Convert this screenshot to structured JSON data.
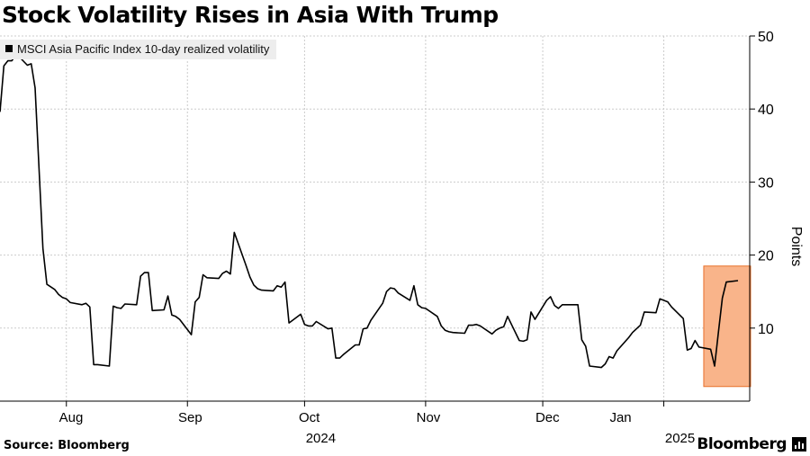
{
  "header": {
    "title": "Stock Volatility Rises in Asia With Trump"
  },
  "footer": {
    "source": "Source: Bloomberg",
    "brand": "Bloomberg"
  },
  "colors": {
    "line": "#000000",
    "grid": "#cccccc",
    "highlight_fill": "#f9b48a",
    "highlight_stroke": "#e8702a",
    "legend_bg": "#ededed"
  },
  "chart_data": {
    "type": "line",
    "title": "Stock Volatility Rises in Asia With Trump",
    "ylabel": "Points",
    "ylim": [
      0,
      50
    ],
    "y_ticks": [
      10,
      20,
      30,
      40,
      50
    ],
    "y_axis_position": "right",
    "x_range": [
      "2024-07-15",
      "2025-01-23"
    ],
    "x_month_ticks": [
      {
        "date": "2024-08-01",
        "label": "Aug"
      },
      {
        "date": "2024-09-01",
        "label": "Sep"
      },
      {
        "date": "2024-10-01",
        "label": "Oct"
      },
      {
        "date": "2024-11-01",
        "label": "Nov"
      },
      {
        "date": "2024-12-01",
        "label": "Dec"
      },
      {
        "date": "2025-01-01",
        "label": "Jan"
      }
    ],
    "x_year_labels": [
      {
        "date": "2024-10-01",
        "label": "2024"
      },
      {
        "date": "2025-01-01",
        "label": "2025"
      }
    ],
    "grid": true,
    "legend_position": "top-left",
    "series": [
      {
        "name": "MSCI Asia Pacific Index 10-day realized volatility",
        "points": [
          [
            "2024-07-15",
            39.6
          ],
          [
            "2024-07-16",
            45.9
          ],
          [
            "2024-07-17",
            46.6
          ],
          [
            "2024-07-18",
            46.6
          ],
          [
            "2024-07-19",
            47.3
          ],
          [
            "2024-07-20",
            47.1
          ],
          [
            "2024-07-22",
            46.0
          ],
          [
            "2024-07-23",
            46.2
          ],
          [
            "2024-07-24",
            42.9
          ],
          [
            "2024-07-26",
            20.9
          ],
          [
            "2024-07-27",
            16.0
          ],
          [
            "2024-07-29",
            15.3
          ],
          [
            "2024-07-30",
            14.6
          ],
          [
            "2024-07-31",
            14.2
          ],
          [
            "2024-08-01",
            14.0
          ],
          [
            "2024-08-02",
            13.5
          ],
          [
            "2024-08-05",
            13.2
          ],
          [
            "2024-08-06",
            13.4
          ],
          [
            "2024-08-07",
            12.9
          ],
          [
            "2024-08-08",
            5.0
          ],
          [
            "2024-08-09",
            5.0
          ],
          [
            "2024-08-12",
            4.8
          ],
          [
            "2024-08-13",
            13.0
          ],
          [
            "2024-08-14",
            12.8
          ],
          [
            "2024-08-15",
            12.7
          ],
          [
            "2024-08-16",
            13.3
          ],
          [
            "2024-08-19",
            13.2
          ],
          [
            "2024-08-20",
            17.1
          ],
          [
            "2024-08-21",
            17.6
          ],
          [
            "2024-08-22",
            17.6
          ],
          [
            "2024-08-23",
            12.4
          ],
          [
            "2024-08-26",
            12.5
          ],
          [
            "2024-08-27",
            14.4
          ],
          [
            "2024-08-28",
            11.8
          ],
          [
            "2024-08-29",
            11.6
          ],
          [
            "2024-08-30",
            11.2
          ],
          [
            "2024-09-02",
            9.1
          ],
          [
            "2024-09-03",
            13.6
          ],
          [
            "2024-09-04",
            14.2
          ],
          [
            "2024-09-05",
            17.3
          ],
          [
            "2024-09-06",
            16.9
          ],
          [
            "2024-09-09",
            16.8
          ],
          [
            "2024-09-10",
            17.5
          ],
          [
            "2024-09-11",
            17.8
          ],
          [
            "2024-09-12",
            17.4
          ],
          [
            "2024-09-13",
            23.1
          ],
          [
            "2024-09-16",
            18.6
          ],
          [
            "2024-09-17",
            17.0
          ],
          [
            "2024-09-18",
            15.9
          ],
          [
            "2024-09-19",
            15.4
          ],
          [
            "2024-09-20",
            15.2
          ],
          [
            "2024-09-23",
            15.1
          ],
          [
            "2024-09-24",
            15.8
          ],
          [
            "2024-09-25",
            15.6
          ],
          [
            "2024-09-26",
            16.3
          ],
          [
            "2024-09-27",
            10.7
          ],
          [
            "2024-09-30",
            11.9
          ],
          [
            "2024-10-01",
            10.5
          ],
          [
            "2024-10-02",
            10.3
          ],
          [
            "2024-10-03",
            10.3
          ],
          [
            "2024-10-04",
            10.9
          ],
          [
            "2024-10-07",
            9.9
          ],
          [
            "2024-10-08",
            10.0
          ],
          [
            "2024-10-09",
            5.9
          ],
          [
            "2024-10-10",
            5.9
          ],
          [
            "2024-10-11",
            6.4
          ],
          [
            "2024-10-14",
            7.7
          ],
          [
            "2024-10-15",
            7.7
          ],
          [
            "2024-10-16",
            9.9
          ],
          [
            "2024-10-17",
            10.0
          ],
          [
            "2024-10-18",
            11.1
          ],
          [
            "2024-10-21",
            13.4
          ],
          [
            "2024-10-22",
            15.0
          ],
          [
            "2024-10-23",
            15.5
          ],
          [
            "2024-10-24",
            15.4
          ],
          [
            "2024-10-25",
            14.8
          ],
          [
            "2024-10-28",
            13.8
          ],
          [
            "2024-10-29",
            15.8
          ],
          [
            "2024-10-30",
            13.2
          ],
          [
            "2024-10-31",
            12.8
          ],
          [
            "2024-11-01",
            12.7
          ],
          [
            "2024-11-04",
            11.6
          ],
          [
            "2024-11-05",
            10.3
          ],
          [
            "2024-11-06",
            9.7
          ],
          [
            "2024-11-07",
            9.5
          ],
          [
            "2024-11-08",
            9.4
          ],
          [
            "2024-11-11",
            9.3
          ],
          [
            "2024-11-12",
            10.4
          ],
          [
            "2024-11-13",
            10.4
          ],
          [
            "2024-11-14",
            10.5
          ],
          [
            "2024-11-15",
            10.3
          ],
          [
            "2024-11-18",
            9.2
          ],
          [
            "2024-11-19",
            9.7
          ],
          [
            "2024-11-20",
            10.0
          ],
          [
            "2024-11-21",
            10.2
          ],
          [
            "2024-11-22",
            11.6
          ],
          [
            "2024-11-25",
            8.3
          ],
          [
            "2024-11-26",
            8.2
          ],
          [
            "2024-11-27",
            8.4
          ],
          [
            "2024-11-28",
            12.2
          ],
          [
            "2024-11-29",
            11.2
          ],
          [
            "2024-12-02",
            13.8
          ],
          [
            "2024-12-03",
            14.3
          ],
          [
            "2024-12-04",
            13.1
          ],
          [
            "2024-12-05",
            12.7
          ],
          [
            "2024-12-06",
            13.2
          ],
          [
            "2024-12-09",
            13.2
          ],
          [
            "2024-12-10",
            13.2
          ],
          [
            "2024-12-11",
            8.4
          ],
          [
            "2024-12-12",
            7.5
          ],
          [
            "2024-12-13",
            4.8
          ],
          [
            "2024-12-16",
            4.6
          ],
          [
            "2024-12-17",
            5.1
          ],
          [
            "2024-12-18",
            6.1
          ],
          [
            "2024-12-19",
            5.9
          ],
          [
            "2024-12-20",
            6.9
          ],
          [
            "2024-12-23",
            8.7
          ],
          [
            "2024-12-24",
            9.4
          ],
          [
            "2024-12-26",
            10.4
          ],
          [
            "2024-12-27",
            12.2
          ],
          [
            "2024-12-30",
            12.1
          ],
          [
            "2024-12-31",
            14.0
          ],
          [
            "2025-01-02",
            13.6
          ],
          [
            "2025-01-03",
            12.9
          ],
          [
            "2025-01-06",
            11.3
          ],
          [
            "2025-01-07",
            7.0
          ],
          [
            "2025-01-08",
            7.2
          ],
          [
            "2025-01-09",
            8.3
          ],
          [
            "2025-01-10",
            7.4
          ],
          [
            "2025-01-13",
            7.1
          ],
          [
            "2025-01-14",
            4.8
          ],
          [
            "2025-01-15",
            9.5
          ],
          [
            "2025-01-16",
            14.1
          ],
          [
            "2025-01-17",
            16.3
          ],
          [
            "2025-01-20",
            16.5
          ]
        ]
      }
    ],
    "highlight": {
      "start": "2025-01-14",
      "end": "2025-01-20",
      "y_from": 2,
      "y_to": 18.5
    }
  }
}
